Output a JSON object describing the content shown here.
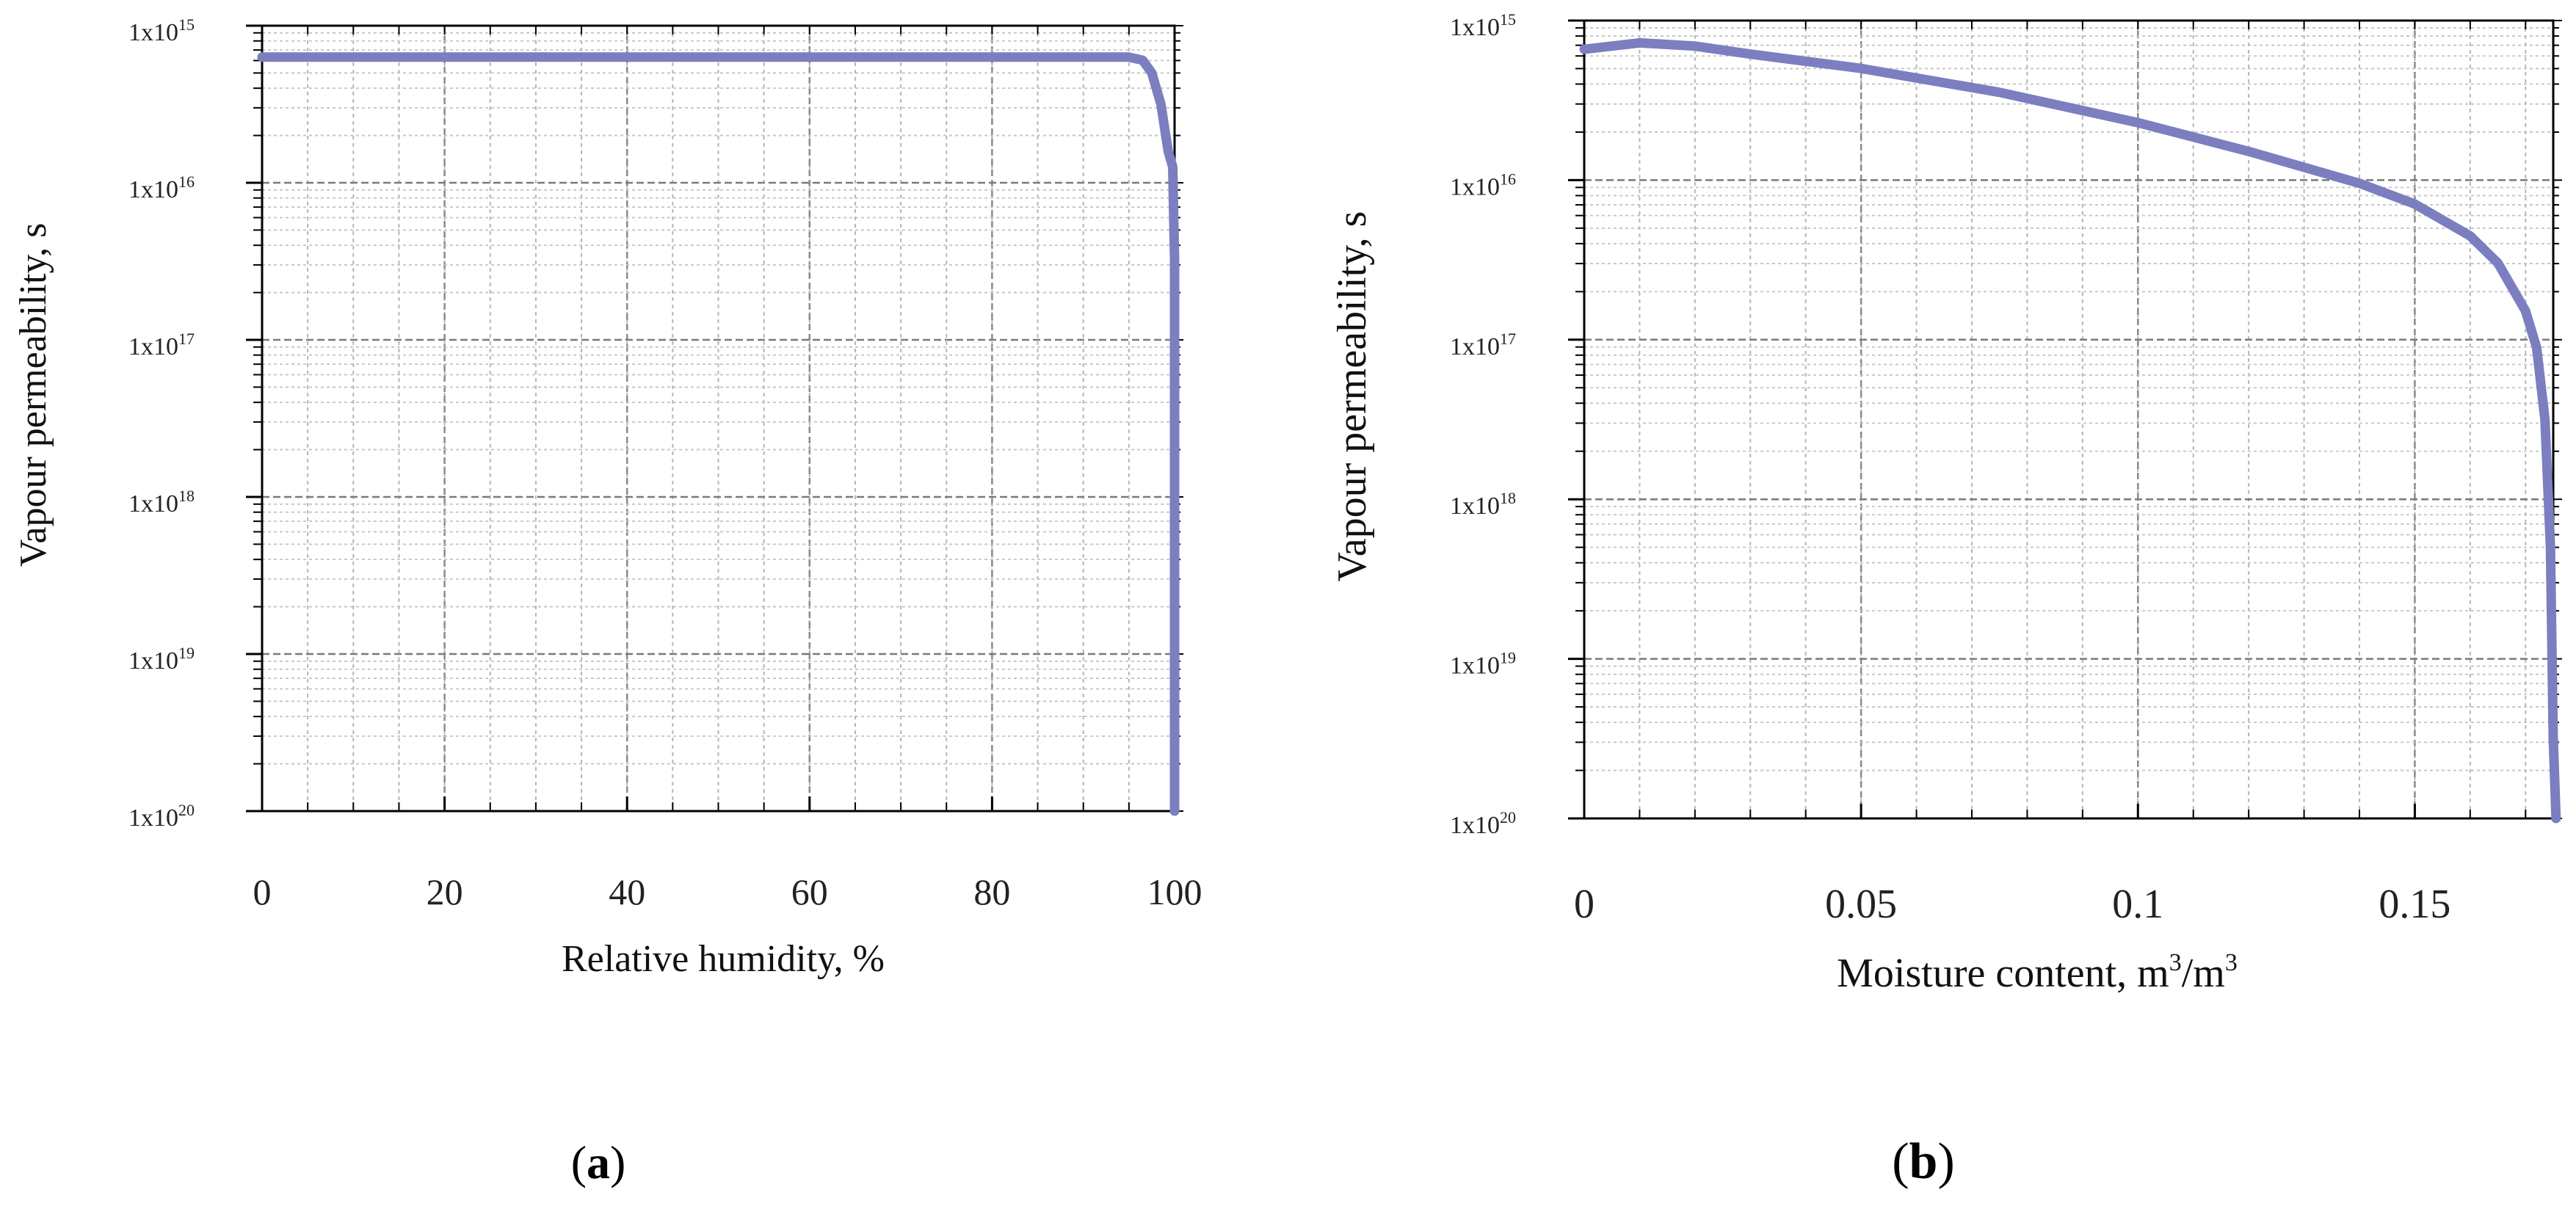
{
  "chart_data": [
    {
      "type": "line",
      "panel": "(a)",
      "panel_letter": "a",
      "xlabel": "Relative humidity, %",
      "ylabel": "Vapour permeability, s",
      "xlim": [
        0,
        100
      ],
      "x_ticks": [
        0,
        20,
        40,
        60,
        80,
        100
      ],
      "x_tick_labels": [
        "0",
        "20",
        "40",
        "60",
        "80",
        "100"
      ],
      "x_minor_step": 5,
      "y_scale": "log",
      "ylim_exponents": [
        -20,
        -15
      ],
      "y_ticks": [
        {
          "mantissa": "1x10",
          "exp": "15"
        },
        {
          "mantissa": "1x10",
          "exp": "16"
        },
        {
          "mantissa": "1x10",
          "exp": "17"
        },
        {
          "mantissa": "1x10",
          "exp": "18"
        },
        {
          "mantissa": "1x10",
          "exp": "19"
        },
        {
          "mantissa": "1x10",
          "exp": "20"
        }
      ],
      "grid": true,
      "line_color": "#7b7fc0",
      "series": [
        {
          "name": "vapour permeability",
          "x": [
            0,
            20,
            40,
            60,
            80,
            95,
            96.5,
            97.5,
            98.5,
            99.3,
            99.8,
            100,
            100,
            100
          ],
          "log10_y": [
            -15.2,
            -15.2,
            -15.2,
            -15.2,
            -15.2,
            -15.2,
            -15.22,
            -15.3,
            -15.5,
            -15.8,
            -15.9,
            -16.5,
            -18.5,
            -20
          ]
        }
      ]
    },
    {
      "type": "line",
      "panel": "(b)",
      "panel_letter": "b",
      "xlabel": "Moisture content, m",
      "xlabel_sup1": "3",
      "xlabel_mid": "/m",
      "xlabel_sup2": "3",
      "ylabel": "Vapour permeability, s",
      "xlim": [
        0,
        0.175
      ],
      "x_ticks": [
        0,
        0.05,
        0.1,
        0.15
      ],
      "x_tick_labels": [
        "0",
        "0.05",
        "0.1",
        "0.15"
      ],
      "x_minor_step": 0.01,
      "y_scale": "log",
      "ylim_exponents": [
        -20,
        -15
      ],
      "y_ticks": [
        {
          "mantissa": "1x10",
          "exp": "15"
        },
        {
          "mantissa": "1x10",
          "exp": "16"
        },
        {
          "mantissa": "1x10",
          "exp": "17"
        },
        {
          "mantissa": "1x10",
          "exp": "18"
        },
        {
          "mantissa": "1x10",
          "exp": "19"
        },
        {
          "mantissa": "1x10",
          "exp": "20"
        }
      ],
      "grid": true,
      "line_color": "#7b7fc0",
      "series": [
        {
          "name": "vapour permeability",
          "x": [
            0,
            0.01,
            0.02,
            0.03,
            0.05,
            0.075,
            0.1,
            0.12,
            0.14,
            0.15,
            0.16,
            0.165,
            0.17,
            0.172,
            0.1735,
            0.1745,
            0.175,
            0.1755
          ],
          "log10_y": [
            -15.18,
            -15.14,
            -15.16,
            -15.21,
            -15.3,
            -15.45,
            -15.64,
            -15.82,
            -16.02,
            -16.15,
            -16.35,
            -16.52,
            -16.82,
            -17.05,
            -17.5,
            -18.3,
            -19.5,
            -20
          ]
        }
      ]
    }
  ]
}
